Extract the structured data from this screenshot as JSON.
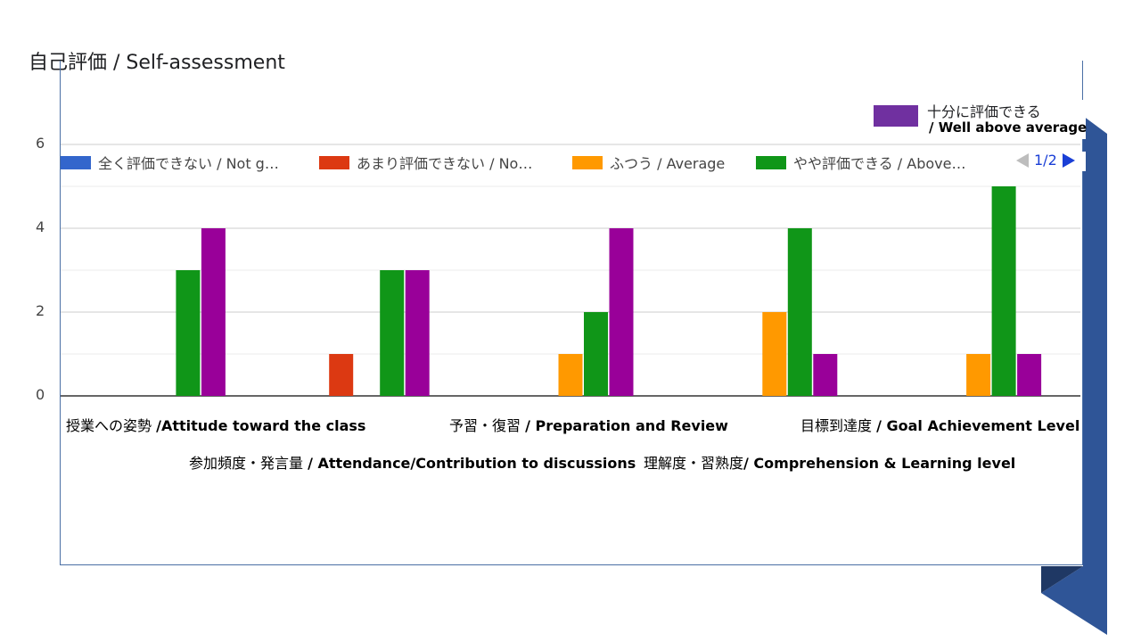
{
  "chart_data": {
    "type": "bar",
    "title": "自己評価 / Self-assessment",
    "categories": [
      "授業への姿勢 /Attitude toward the class",
      "参加頻度・発言量 / Attendance/Contribution to discussions",
      "予習・復習 / Preparation and Review",
      "理解度・習熟度/ Comprehension & Learning level",
      "目標到達度 / Goal Achievement Level"
    ],
    "category_labels": [
      {
        "jp": "授業への姿勢 ",
        "en": "/Attitude toward  the class"
      },
      {
        "jp": "参加頻度・発言量 ",
        "en": "/ Attendance/Contribution  to discussions"
      },
      {
        "jp": "予習・復習 ",
        "en": "/ Preparation and Review"
      },
      {
        "jp": "理解度・習熟度",
        "en": "/ Comprehension & Learning  level"
      },
      {
        "jp": "目標到達度 ",
        "en": "/ Goal Achievement Level"
      }
    ],
    "series": [
      {
        "name": "全く評価できない / Not g…",
        "color": "#3366cc",
        "values": [
          0,
          0,
          0,
          0,
          0
        ]
      },
      {
        "name": "あまり評価できない / No…",
        "color": "#dc3912",
        "values": [
          0,
          1,
          0,
          0,
          0
        ]
      },
      {
        "name": "ふつう / Average",
        "color": "#ff9900",
        "values": [
          0,
          0,
          1,
          2,
          1
        ]
      },
      {
        "name": "やや評価できる / Above…",
        "color": "#109618",
        "values": [
          3,
          3,
          2,
          4,
          5
        ]
      },
      {
        "name": "十分に評価できる",
        "color": "#990099",
        "values": [
          4,
          3,
          4,
          1,
          1
        ]
      }
    ],
    "ylim": [
      0,
      6
    ],
    "yticks": [
      0,
      2,
      4,
      6
    ],
    "grid": true,
    "legend_position": "top",
    "legend_page": "1/2"
  },
  "legend_overlay": {
    "line1": "十分に評価できる",
    "line2": "/ Well above average",
    "color": "#7030a0"
  },
  "colors": {
    "accent_blue": "#2f5597",
    "pager_blue": "#1a3fd6"
  }
}
